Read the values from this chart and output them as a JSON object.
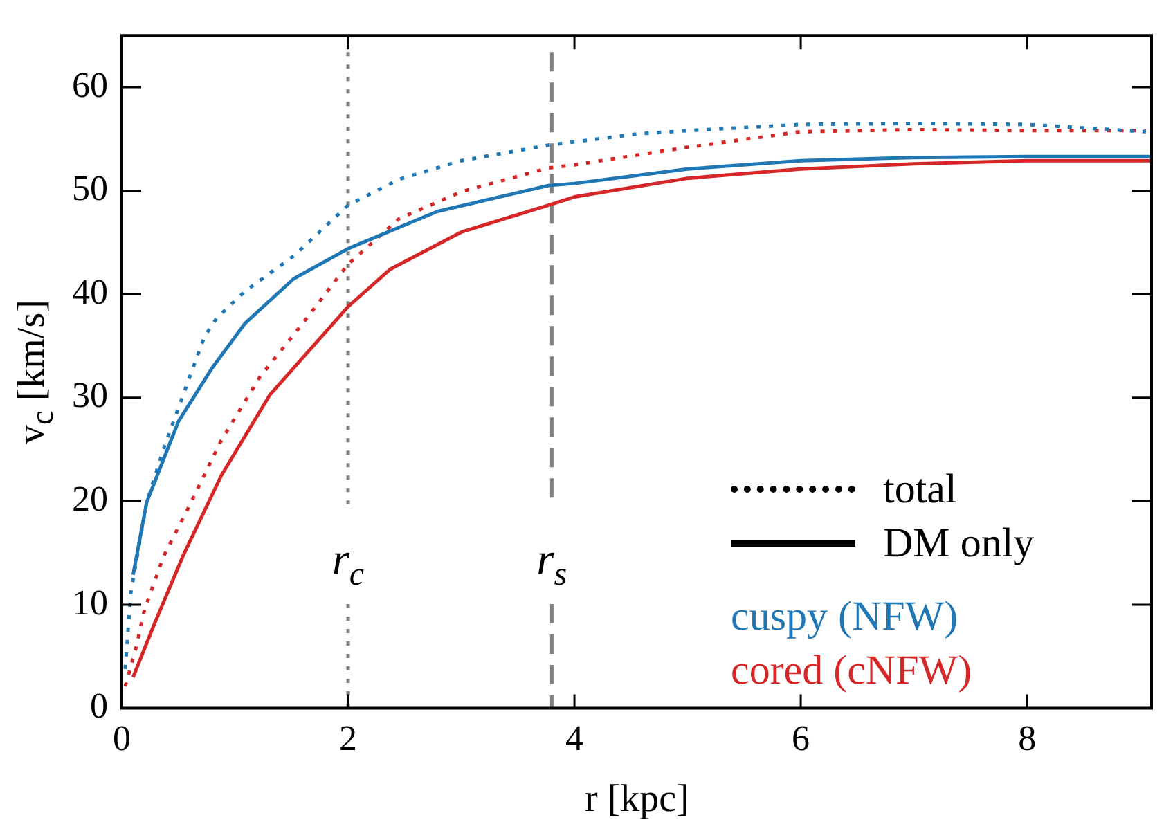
{
  "chart_data": {
    "type": "line",
    "xlabel": "r [kpc]",
    "ylabel": "v$_{c}$ [km/s]",
    "xlim": [
      0,
      9.1
    ],
    "ylim": [
      0,
      65
    ],
    "xticks": [
      0,
      2,
      4,
      6,
      8
    ],
    "yticks": [
      0,
      10,
      20,
      30,
      40,
      50,
      60
    ],
    "legend": "bottom right",
    "annotations": [
      "total",
      "DM only"
    ],
    "ref_lines": [
      {
        "axis": "x",
        "value": 2,
        "label": "r$_{c}$",
        "color": "#808080",
        "line_style": "dotted"
      },
      {
        "axis": "x",
        "value": 3.8,
        "label": "r$_{s}$",
        "color": "#808080",
        "line_style": "dashed"
      }
    ],
    "series": [
      {
        "name": "cuspy (NFW)",
        "color": "#1f77b4",
        "line_style": "dotted",
        "x": [
          0.03,
          0.08,
          0.22,
          0.37,
          0.5,
          0.73,
          0.84,
          1.09,
          1.52,
          2,
          2.45,
          3,
          3.77,
          4.57,
          5,
          6,
          7,
          8,
          9.05
        ],
        "values": [
          3.8,
          11.2,
          19.9,
          25.1,
          29,
          35.9,
          37.7,
          40.3,
          43.7,
          48.6,
          51.1,
          52.9,
          54.4,
          55.5,
          55.8,
          56.4,
          56.5,
          56.4,
          55.7
        ]
      },
      {
        "color": "#1f77b4",
        "line_style": "solid",
        "x": [
          0.1,
          0.22,
          0.5,
          0.8,
          1.09,
          1.52,
          2,
          2.79,
          3.77,
          4,
          5,
          6,
          7,
          8,
          9.1
        ],
        "values": [
          12.9,
          19.9,
          27.7,
          32.9,
          37.2,
          41.5,
          44.4,
          48,
          50.5,
          50.7,
          52.1,
          52.9,
          53.2,
          53.3,
          53.3
        ]
      },
      {
        "name": "cored (cNFW)",
        "color": "#d62728",
        "line_style": "dotted",
        "x": [
          0.03,
          0.12,
          0.2,
          0.37,
          0.59,
          0.88,
          1.22,
          1.6,
          2,
          2.45,
          3,
          3.77,
          4,
          5,
          6,
          7,
          8,
          9.05
        ],
        "values": [
          2.1,
          5.6,
          9.5,
          14.7,
          19.4,
          25.9,
          32,
          37.2,
          42.9,
          47.3,
          49.9,
          52.2,
          52.5,
          54.2,
          55.7,
          55.9,
          55.8,
          55.8
        ]
      },
      {
        "color": "#d62728",
        "line_style": "solid",
        "x": [
          0.1,
          0.29,
          0.54,
          0.88,
          1.31,
          2,
          2.37,
          3,
          3.77,
          4,
          5,
          6,
          7,
          8,
          9.1
        ],
        "values": [
          3,
          8.2,
          14.7,
          22.5,
          30.3,
          38.8,
          42.4,
          46,
          48.6,
          49.4,
          51.2,
          52.1,
          52.6,
          52.9,
          52.9
        ]
      }
    ]
  }
}
